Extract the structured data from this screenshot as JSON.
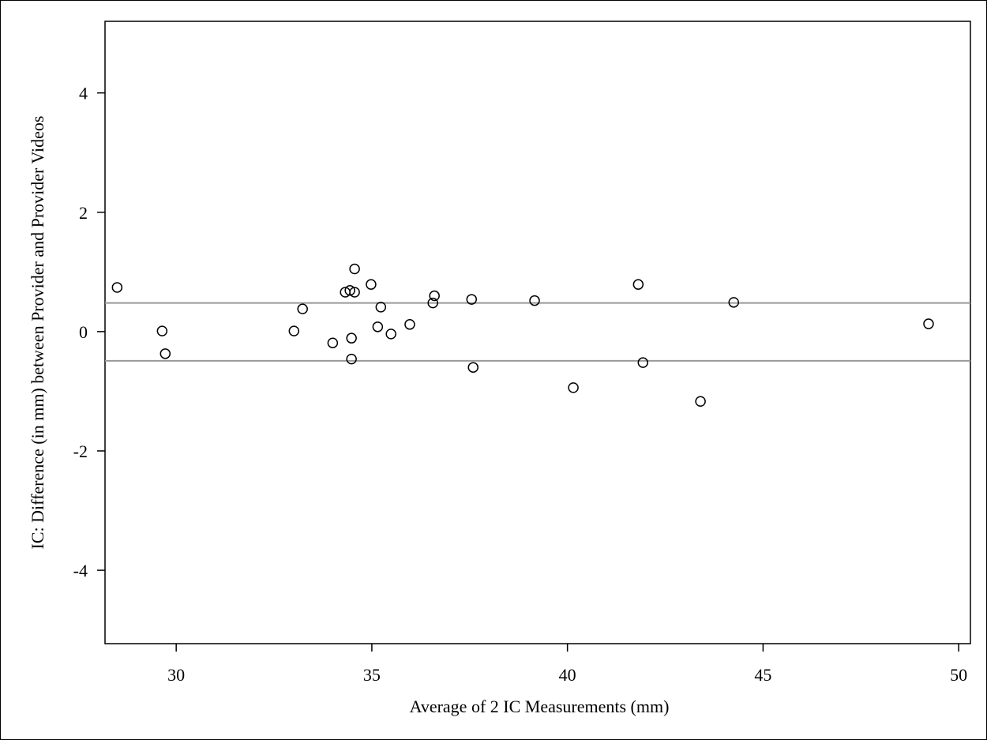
{
  "chart_data": {
    "type": "scatter",
    "x_label": "Average of 2 IC Measurements (mm)",
    "y_label": "IC: Difference (in mm) between Provider and Provider Videos",
    "x": [
      28.49,
      29.64,
      29.72,
      33.01,
      33.23,
      34.0,
      34.32,
      34.44,
      34.56,
      34.56,
      34.48,
      34.48,
      34.98,
      35.15,
      35.23,
      35.49,
      35.97,
      36.56,
      36.6,
      37.55,
      37.59,
      39.16,
      40.15,
      41.81,
      41.93,
      43.4,
      44.25,
      49.23
    ],
    "values": [
      0.74,
      0.01,
      -0.37,
      0.01,
      0.38,
      -0.19,
      0.66,
      0.69,
      1.05,
      0.66,
      -0.11,
      -0.46,
      0.79,
      0.08,
      0.41,
      -0.04,
      0.12,
      0.48,
      0.6,
      0.54,
      -0.6,
      0.52,
      -0.94,
      0.79,
      -0.52,
      -1.17,
      0.49,
      0.13
    ],
    "color": "#000000",
    "hlines": [
      0.48,
      -0.49
    ],
    "hline_color": "#999999",
    "xlim": [
      28.18,
      50.3
    ],
    "xticks": [
      30,
      35,
      40,
      45,
      50
    ],
    "ylim": [
      -5.23,
      5.2
    ],
    "yticks": [
      -4,
      -2,
      0,
      2,
      4
    ]
  }
}
